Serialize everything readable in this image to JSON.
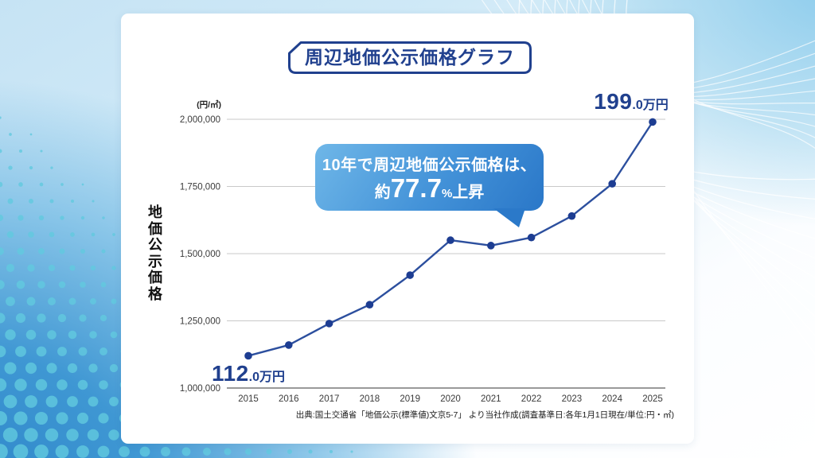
{
  "title": "周辺地価公示価格グラフ",
  "y_axis_title": "地価公示価格",
  "unit_label": "(円/㎡)",
  "callout": {
    "line1": "10年で周辺地価公示価格は、",
    "approx": "約",
    "percent_value": "77.7",
    "percent_sign": "%",
    "suffix": "上昇"
  },
  "start_label": {
    "big": "112",
    "small": ".0万円"
  },
  "end_label": {
    "big": "199",
    "small": ".0万円"
  },
  "source": "出典:国土交通省「地価公示(標準値)文京5-7」 より当社作成(調査基準日:各年1月1日現在/単位:円・㎡)",
  "colors": {
    "navy": "#20408e",
    "line": "#2c4f9e",
    "point": "#1d3d92",
    "gridline": "#c9c9c9",
    "axis": "#9a9a9a",
    "tick_text": "#3a3a3a",
    "bubble_start": "#6fb7e8",
    "bubble_end": "#2a77c8",
    "bg_blue": "#2b84c8",
    "dot_cyan": "#62c9de"
  },
  "chart_data": {
    "type": "line",
    "title": "周辺地価公示価格グラフ",
    "ylabel": "地価公示価格",
    "y_unit": "円/㎡",
    "categories": [
      "2015",
      "2016",
      "2017",
      "2018",
      "2019",
      "2020",
      "2021",
      "2022",
      "2023",
      "2024",
      "2025"
    ],
    "values": [
      1120000,
      1160000,
      1240000,
      1310000,
      1420000,
      1550000,
      1530000,
      1560000,
      1640000,
      1760000,
      1990000
    ],
    "ylim": [
      1000000,
      2000000
    ],
    "y_ticks": [
      2000000,
      1750000,
      1500000,
      1250000,
      1000000
    ],
    "grid": true,
    "legend": false,
    "annotations": [
      {
        "x": "2015",
        "label": "112.0万円"
      },
      {
        "x": "2025",
        "label": "199.0万円"
      },
      {
        "text": "10年で周辺地価公示価格は、約77.7%上昇"
      }
    ]
  }
}
